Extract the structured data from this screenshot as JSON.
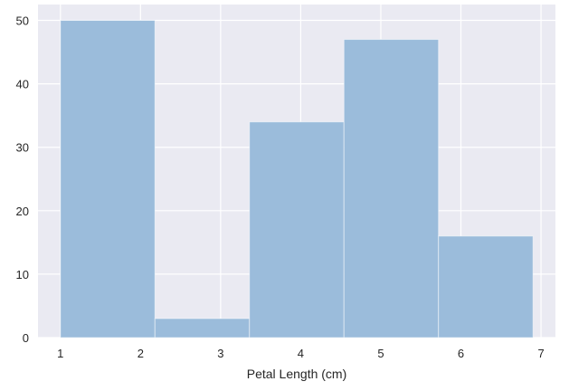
{
  "chart_data": {
    "type": "bar",
    "title": "",
    "xlabel": "Petal Length (cm)",
    "ylabel": "",
    "bins": [
      {
        "x0": 1.0,
        "x1": 2.18,
        "count": 50
      },
      {
        "x0": 2.18,
        "x1": 3.36,
        "count": 3
      },
      {
        "x0": 3.36,
        "x1": 4.54,
        "count": 34
      },
      {
        "x0": 4.54,
        "x1": 5.72,
        "count": 47
      },
      {
        "x0": 5.72,
        "x1": 6.9,
        "count": 16
      }
    ],
    "xlim": [
      0.72,
      7.18
    ],
    "ylim": [
      0,
      52.5
    ],
    "xticks": [
      1,
      2,
      3,
      4,
      5,
      6,
      7
    ],
    "yticks": [
      0,
      10,
      20,
      30,
      40,
      50
    ],
    "grid": true,
    "colors": {
      "background": "#eaeaf2",
      "grid": "#ffffff",
      "bar": "#9bbcdb",
      "text": "#262626"
    }
  }
}
